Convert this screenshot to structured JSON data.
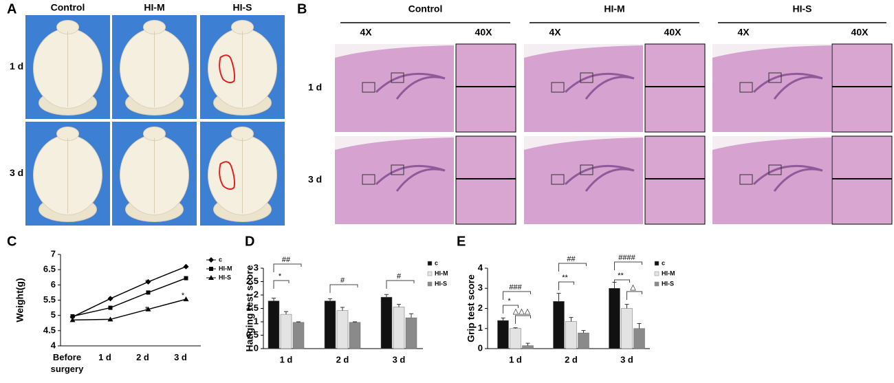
{
  "figure": {
    "A": {
      "label": "A",
      "columns": [
        "Control",
        "HI-M",
        "HI-S"
      ],
      "rows": [
        "1 d",
        "3 d"
      ]
    },
    "B": {
      "label": "B",
      "groups": [
        "Control",
        "HI-M",
        "HI-S"
      ],
      "magnifications": [
        "4X",
        "40X"
      ],
      "rows": [
        "1 d",
        "3 d"
      ]
    }
  },
  "chart_data": [
    {
      "type": "line",
      "label": "C",
      "ylabel": "Weight(g)",
      "categories": [
        "Before surgery",
        "1 d",
        "2 d",
        "3 d"
      ],
      "series": [
        {
          "name": "c",
          "color": "#000000",
          "marker": "diamond",
          "values": [
            4.95,
            5.55,
            6.1,
            6.6
          ]
        },
        {
          "name": "HI-M",
          "color": "#000000",
          "marker": "square",
          "values": [
            4.97,
            5.25,
            5.75,
            6.22
          ]
        },
        {
          "name": "HI-S",
          "color": "#000000",
          "marker": "triangle",
          "values": [
            4.85,
            4.87,
            5.2,
            5.53
          ]
        }
      ],
      "annotations": [
        "*",
        "*",
        "*",
        "*"
      ],
      "ylim": [
        4,
        7
      ],
      "yticks": [
        4,
        4.5,
        5,
        5.5,
        6,
        6.5,
        7
      ]
    },
    {
      "type": "bar",
      "label": "D",
      "ylabel": "Hanging  test score",
      "categories": [
        "1 d",
        "2 d",
        "3 d"
      ],
      "series": [
        {
          "name": "c",
          "color": "#111111",
          "values": [
            1.78,
            1.78,
            1.92
          ],
          "errors": [
            0.1,
            0.08,
            0.1
          ]
        },
        {
          "name": "HI-M",
          "color": "#e3e3e3",
          "values": [
            1.28,
            1.42,
            1.55
          ],
          "errors": [
            0.1,
            0.12,
            0.1
          ]
        },
        {
          "name": "HI-S",
          "color": "#8a8a8a",
          "values": [
            0.98,
            0.98,
            1.15
          ],
          "errors": [
            0.02,
            0.02,
            0.15
          ]
        }
      ],
      "annotations": [
        "*",
        "##",
        "#",
        "#"
      ],
      "ylim": [
        0,
        3
      ],
      "yticks": [
        0,
        0.5,
        1,
        1.5,
        2,
        2.5,
        3
      ]
    },
    {
      "type": "bar",
      "label": "E",
      "ylabel": "Grip test score",
      "categories": [
        "1 d",
        "2 d",
        "3 d"
      ],
      "series": [
        {
          "name": "c",
          "color": "#111111",
          "values": [
            1.4,
            2.35,
            3.0
          ],
          "errors": [
            0.12,
            0.4,
            0.3
          ]
        },
        {
          "name": "HI-M",
          "color": "#e3e3e3",
          "values": [
            1.0,
            1.35,
            2.0
          ],
          "errors": [
            0.04,
            0.2,
            0.2
          ]
        },
        {
          "name": "HI-S",
          "color": "#8a8a8a",
          "values": [
            0.15,
            0.78,
            1.0
          ],
          "errors": [
            0.12,
            0.12,
            0.25
          ]
        }
      ],
      "annotations": [
        "###",
        "*",
        "△△△",
        "##",
        "**",
        "####",
        "**",
        "△"
      ],
      "ylim": [
        0,
        4
      ],
      "yticks": [
        0,
        1,
        2,
        3,
        4
      ]
    }
  ]
}
